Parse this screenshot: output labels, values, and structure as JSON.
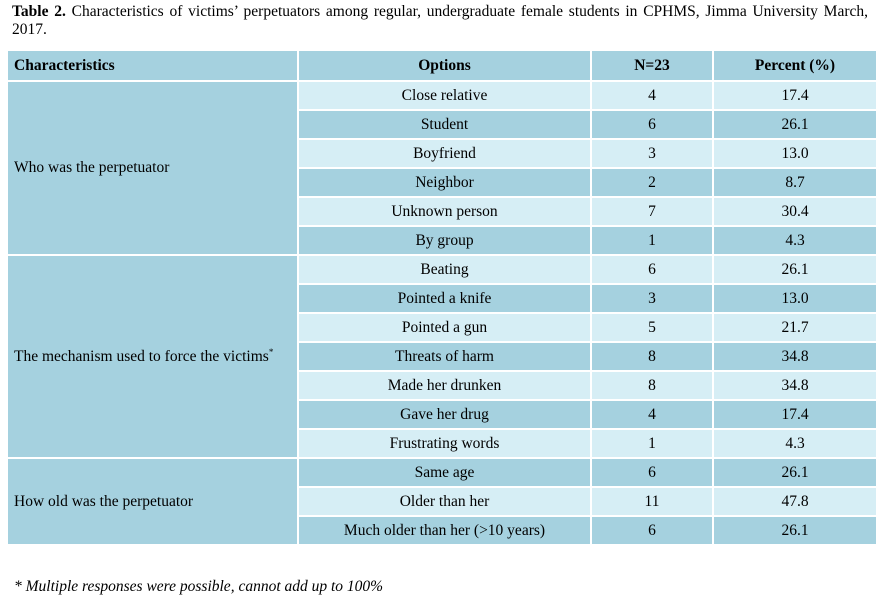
{
  "caption": {
    "label": "Table 2.",
    "text": " Characteristics of victims’ perpetuators among regular, undergraduate female students in CPHMS, Jimma University March, 2017."
  },
  "headers": [
    "Characteristics",
    "Options",
    "N=23",
    "Percent (%)"
  ],
  "groups": [
    {
      "characteristic": "Who was the perpetuator",
      "marker": "",
      "rows": [
        {
          "option": "Close relative",
          "n": "4",
          "percent": "17.4"
        },
        {
          "option": "Student",
          "n": "6",
          "percent": "26.1"
        },
        {
          "option": "Boyfriend",
          "n": "3",
          "percent": "13.0"
        },
        {
          "option": "Neighbor",
          "n": "2",
          "percent": "8.7"
        },
        {
          "option": "Unknown person",
          "n": "7",
          "percent": "30.4"
        },
        {
          "option": "By group",
          "n": "1",
          "percent": "4.3"
        }
      ]
    },
    {
      "characteristic": "The mechanism used to force the victims",
      "marker": "*",
      "rows": [
        {
          "option": "Beating",
          "n": "6",
          "percent": "26.1"
        },
        {
          "option": "Pointed a knife",
          "n": "3",
          "percent": "13.0"
        },
        {
          "option": "Pointed a gun",
          "n": "5",
          "percent": "21.7"
        },
        {
          "option": "Threats of harm",
          "n": "8",
          "percent": "34.8"
        },
        {
          "option": "Made her drunken",
          "n": "8",
          "percent": "34.8"
        },
        {
          "option": "Gave her drug",
          "n": "4",
          "percent": "17.4"
        },
        {
          "option": "Frustrating words",
          "n": "1",
          "percent": "4.3"
        }
      ]
    },
    {
      "characteristic": "How old was the perpetuator",
      "marker": "",
      "rows": [
        {
          "option": "Same age",
          "n": "6",
          "percent": "26.1"
        },
        {
          "option": "Older than her",
          "n": "11",
          "percent": "47.8"
        },
        {
          "option": "Much older than her (>10 years)",
          "n": "6",
          "percent": "26.1"
        }
      ]
    }
  ],
  "footnote": "* Multiple responses were possible, cannot add up to 100%"
}
